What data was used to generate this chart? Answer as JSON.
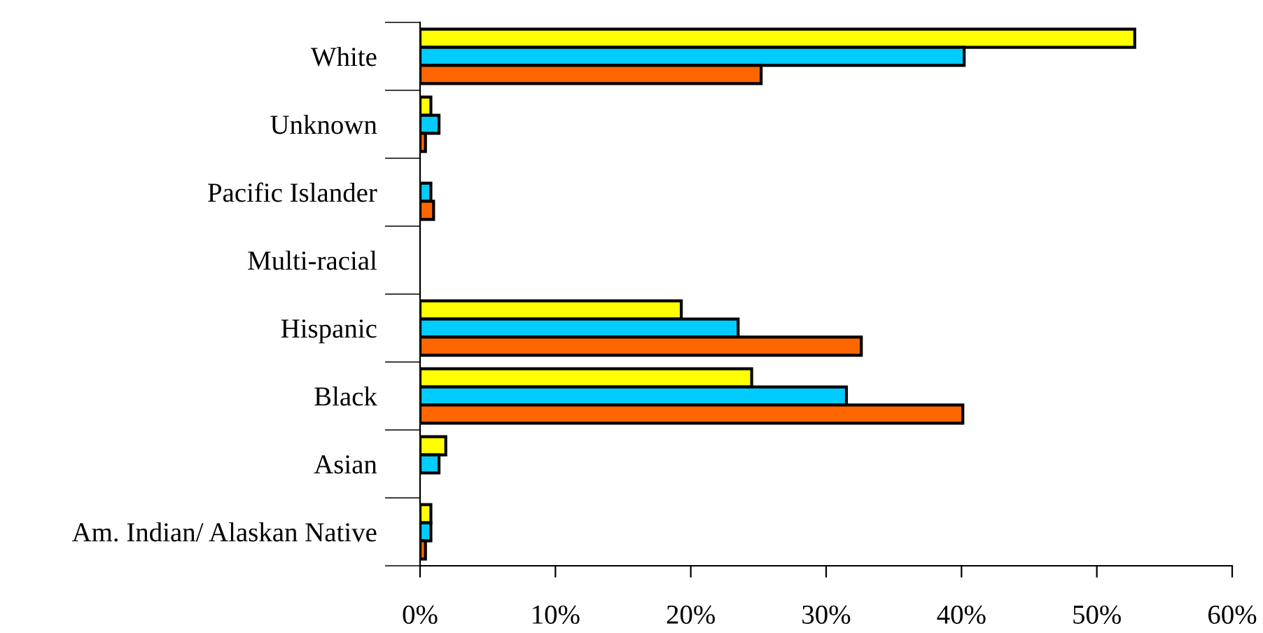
{
  "chart_data": {
    "type": "bar",
    "orientation": "horizontal",
    "categories": [
      "White",
      "Unknown",
      "Pacific Islander",
      "Multi-racial",
      "Hispanic",
      "Black",
      "Asian",
      "Am. Indian/ Alaskan Native"
    ],
    "series": [
      {
        "color": "#ffff00",
        "values": [
          52.8,
          0.8,
          null,
          null,
          19.3,
          24.5,
          1.9,
          0.8
        ]
      },
      {
        "color": "#00ccff",
        "values": [
          40.2,
          1.4,
          0.8,
          null,
          23.5,
          31.5,
          1.4,
          0.8
        ]
      },
      {
        "color": "#ff6600",
        "values": [
          25.2,
          0.4,
          1.0,
          null,
          32.6,
          40.1,
          null,
          0.4
        ]
      }
    ],
    "xlim": [
      0,
      60
    ],
    "xticks": [
      {
        "value": 0,
        "label": "0%"
      },
      {
        "value": 10,
        "label": "10%"
      },
      {
        "value": 20,
        "label": "20%"
      },
      {
        "value": 30,
        "label": "30%"
      },
      {
        "value": 40,
        "label": "40%"
      },
      {
        "value": 50,
        "label": "50%"
      },
      {
        "value": 60,
        "label": "60%"
      }
    ],
    "grid": false
  }
}
